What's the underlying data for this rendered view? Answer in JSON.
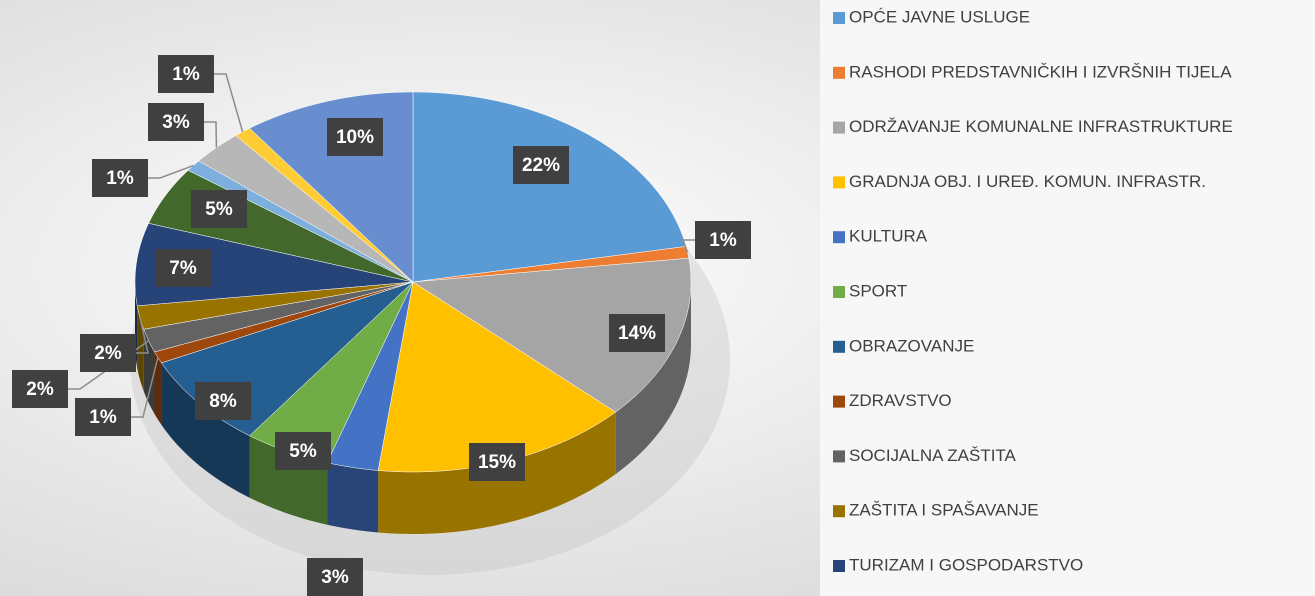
{
  "chart_data": {
    "type": "pie",
    "categories": [
      "OPĆE JAVNE USLUGE",
      "RASHODI PREDSTAVNIČKIH I IZVRŠNIH TIJELA",
      "ODRŽAVANJE KOMUNALNE INFRASTRUKTURE",
      "GRADNJA OBJ. I UREĐ. KOMUN. INFRASTR.",
      "KULTURA",
      "SPORT",
      "OBRAZOVANJE",
      "ZDRAVSTVO",
      "SOCIJALNA ZAŠTITA",
      "ZAŠTITA I SPAŠAVANJE",
      "TURIZAM I GOSPODARSTVO",
      null,
      null,
      null,
      null,
      null
    ],
    "values": [
      22,
      1,
      14,
      15,
      3,
      5,
      8,
      1,
      2,
      2,
      7,
      5,
      1,
      3,
      1,
      10
    ],
    "value_labels": [
      "22%",
      "1%",
      "14%",
      "15%",
      "3%",
      "5%",
      "8%",
      "1%",
      "2%",
      "2%",
      "7%",
      "5%",
      "1%",
      "3%",
      "1%",
      "10%"
    ],
    "colors": [
      "#5b9bd5",
      "#ed7d31",
      "#a5a5a5",
      "#ffc000",
      "#4472c4",
      "#70ad47",
      "#255e91",
      "#9e480e",
      "#636363",
      "#997300",
      "#264478",
      "#43682b",
      "#7cafdd",
      "#b7b7b7",
      "#ffcd33",
      "#698ed0"
    ]
  }
}
